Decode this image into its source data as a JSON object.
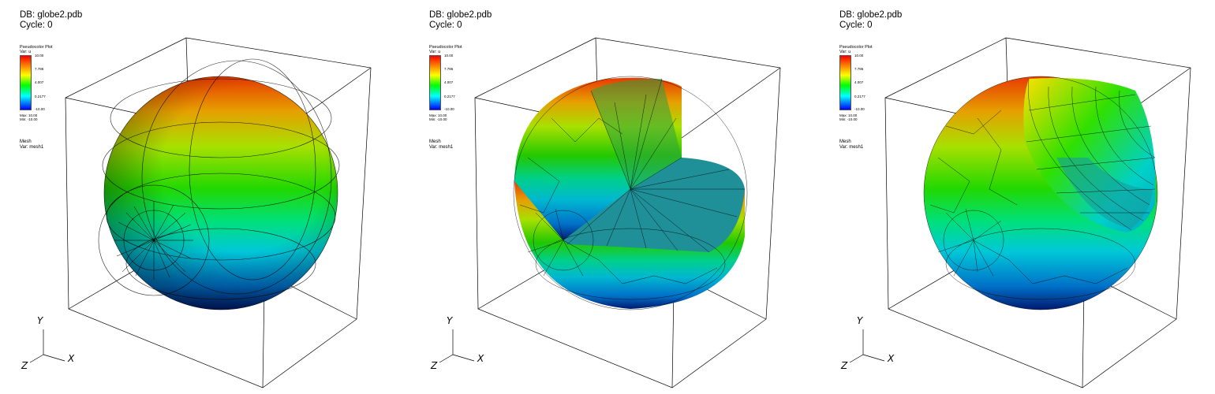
{
  "panels": [
    {
      "db": "DB: globe2.pdb",
      "cycle": "Cycle: 0",
      "plot_title": "Pseudocolor Plot",
      "plot_var": "Var:  u",
      "ticks": [
        "10.00",
        "7.786",
        "4.007",
        "0.2177",
        "-10.00"
      ],
      "max": "Max: 10.00",
      "min": "Min: -10.00",
      "mesh_title": "Mesh",
      "mesh_var": "Var:  mesh1",
      "axis_y": "Y",
      "axis_x": "X",
      "axis_z": "Z"
    },
    {
      "db": "DB: globe2.pdb",
      "cycle": "Cycle: 0",
      "plot_title": "Pseudocolor Plot",
      "plot_var": "Var:  u",
      "ticks": [
        "10.00",
        "7.786",
        "4.007",
        "0.2177",
        "-10.00"
      ],
      "max": "Max: 10.00",
      "min": "Min: -10.00",
      "mesh_title": "Mesh",
      "mesh_var": "Var:  mesh1",
      "axis_y": "Y",
      "axis_x": "X",
      "axis_z": "Z"
    },
    {
      "db": "DB: globe2.pdb",
      "cycle": "Cycle: 0",
      "plot_title": "Pseudocolor Plot",
      "plot_var": "Var:  u",
      "ticks": [
        "10.00",
        "7.786",
        "4.007",
        "0.2177",
        "-10.00"
      ],
      "max": "Max: 10.00",
      "min": "Min: -10.00",
      "mesh_title": "Mesh",
      "mesh_var": "Var:  mesh1",
      "axis_y": "Y",
      "axis_x": "X",
      "axis_z": "Z"
    }
  ],
  "colors": {
    "high": "#ff0000",
    "mid": "#00ff00",
    "low": "#0000ff",
    "cut_face": "#1fa0a8",
    "bounding_box": "#000000"
  }
}
